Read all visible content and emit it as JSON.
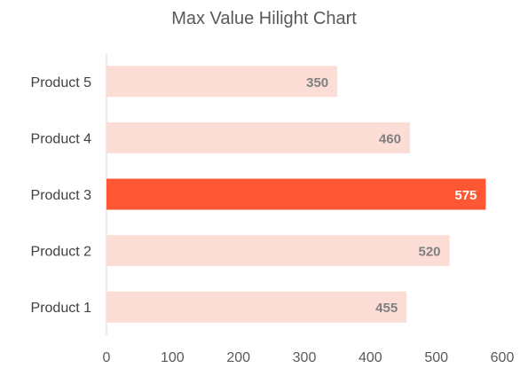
{
  "chart_data": {
    "type": "bar",
    "orientation": "horizontal",
    "title": "Max Value Hilight Chart",
    "xlabel": "",
    "ylabel": "",
    "categories": [
      "Product 1",
      "Product 2",
      "Product 3",
      "Product 4",
      "Product 5"
    ],
    "values": [
      455,
      520,
      575,
      460,
      350
    ],
    "xlim": [
      0,
      600
    ],
    "xticks": [
      0,
      100,
      200,
      300,
      400,
      500,
      600
    ],
    "grid": false,
    "legend": "none",
    "highlight": "max",
    "data_labels": true
  },
  "colors": {
    "bar": "#fcddd6",
    "highlight_bar": "#ff5733",
    "label_normal": "#7f7f7f",
    "label_highlight": "#ffffff",
    "axis": "#d9d9d9"
  }
}
